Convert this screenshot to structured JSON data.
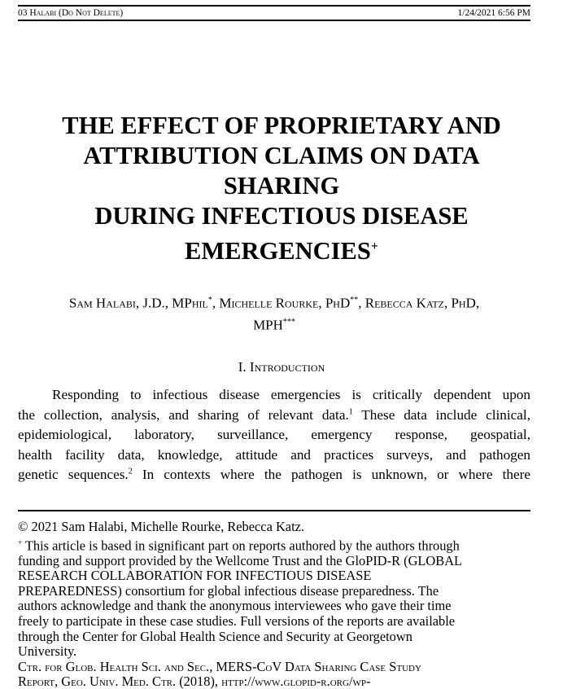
{
  "header": {
    "left": "03 Halabi  (Do Not Delete)",
    "right": "1/24/2021 6:56 PM"
  },
  "title": {
    "lines": [
      "THE EFFECT OF PROPRIETARY AND",
      "ATTRIBUTION CLAIMS ON DATA",
      "SHARING",
      "DURING INFECTIOUS DISEASE",
      "EMERGENCIES"
    ],
    "mark": "+"
  },
  "authors": {
    "a1": "Sam Halabi, J.D., MPhil",
    "m1": "*",
    "a2": "Michelle Rourke, PhD",
    "m2": "**",
    "a3": "Rebecca Katz, PhD,",
    "a3b": "MPH",
    "m3": "***"
  },
  "section": "I. Introduction",
  "body": {
    "l1": "Responding to infectious disease emergencies is critically dependent upon",
    "l2a": "the collection, analysis, and sharing of relevant data.",
    "l2n": "1",
    "l2b": " These data include clinical,",
    "l3": "epidemiological, laboratory, surveillance, emergency response, geospatial,",
    "l4": "health facility data, knowledge, attitude and practices surveys, and pathogen",
    "l5a": "genetic sequences.",
    "l5n": "2",
    "l5b": " In contexts where the pathogen is unknown, or where there"
  },
  "footnotes": {
    "copyright": "© 2021 Sam Halabi, Michelle Rourke, Rebecca Katz.",
    "plus_mark": "+",
    "plus_lines": [
      " This article is based in significant part on reports authored by the authors through",
      "funding and support provided by the Wellcome Trust and the GloPID-R (GLOBAL",
      "RESEARCH COLLABORATION FOR INFECTIOUS DISEASE",
      "PREPAREDNESS) consortium for global infectious disease preparedness. The",
      "authors acknowledge and thank the anonymous interviewees who gave their time",
      "freely to participate in these case studies. Full versions of the reports are available",
      "through the Center for Global Health Science and Security at Georgetown",
      "University."
    ],
    "cite1": "Ctr. for Glob. Health Sci. and Sec., MERS-CoV Data Sharing Case Study",
    "cite2": "Report, Geo. Univ. Med. Ctr. (2018), http://www.glopid-r.org/wp-"
  }
}
